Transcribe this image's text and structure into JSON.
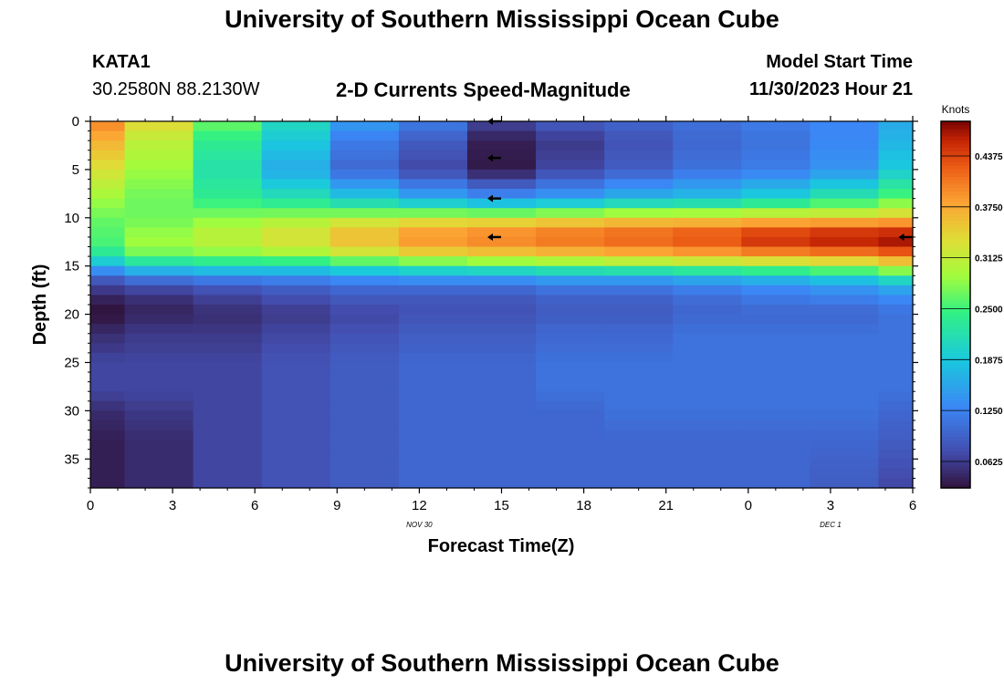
{
  "header": {
    "title": "University of Southern Mississippi Ocean Cube",
    "station": "KATA1",
    "coords": "30.2580N  88.2130W",
    "subtitle": "2-D Currents Speed-Magnitude",
    "model_start_label": "Model Start Time",
    "model_start_value": "11/30/2023 Hour 21"
  },
  "footer": {
    "title": "University of Southern Mississippi Ocean Cube"
  },
  "chart_data": {
    "type": "heatmap",
    "xlabel": "Forecast Time(Z)",
    "ylabel": "Depth (ft)",
    "x_tick_labels": [
      "0",
      "3",
      "6",
      "9",
      "12",
      "15",
      "18",
      "21",
      "0",
      "3",
      "6"
    ],
    "x_tick_hours": [
      0,
      3,
      6,
      9,
      12,
      15,
      18,
      21,
      24,
      27,
      30
    ],
    "x_date_labels": [
      {
        "label": "NOV 30",
        "hour": 12
      },
      {
        "label": "DEC 1",
        "hour": 27
      }
    ],
    "xlim": [
      0,
      30
    ],
    "y_ticks": [
      0,
      5,
      10,
      15,
      20,
      25,
      30,
      35
    ],
    "ylim": [
      0,
      38
    ],
    "y_inverted": true,
    "colorbar": {
      "title": "Knots",
      "tick_labels": [
        "0.0625",
        "0.1250",
        "0.1875",
        "0.2500",
        "0.3125",
        "0.3750",
        "0.4375"
      ],
      "tick_values": [
        0.0625,
        0.125,
        0.1875,
        0.25,
        0.3125,
        0.375,
        0.4375
      ],
      "range": [
        0.03,
        0.48
      ]
    },
    "columns_hours": [
      {
        "start": 0,
        "end": 1.25
      },
      {
        "start": 1.25,
        "end": 3.75
      },
      {
        "start": 3.75,
        "end": 6.25
      },
      {
        "start": 6.25,
        "end": 8.75
      },
      {
        "start": 8.75,
        "end": 11.25
      },
      {
        "start": 11.25,
        "end": 13.75
      },
      {
        "start": 13.75,
        "end": 16.25
      },
      {
        "start": 16.25,
        "end": 18.75
      },
      {
        "start": 18.75,
        "end": 21.25
      },
      {
        "start": 21.25,
        "end": 23.75
      },
      {
        "start": 23.75,
        "end": 26.25
      },
      {
        "start": 26.25,
        "end": 28.75
      },
      {
        "start": 28.75,
        "end": 30
      }
    ],
    "depth_knots": [
      0,
      2,
      5,
      8,
      10,
      11,
      12,
      13,
      14,
      15,
      16,
      17,
      18,
      19,
      20,
      22,
      25,
      28,
      30,
      33,
      38
    ],
    "speed_knots_by_column": [
      [
        0.4,
        0.37,
        0.33,
        0.29,
        0.27,
        0.26,
        0.26,
        0.25,
        0.22,
        0.17,
        0.1,
        0.07,
        0.05,
        0.035,
        0.03,
        0.05,
        0.07,
        0.07,
        0.05,
        0.04,
        0.04
      ],
      [
        0.34,
        0.31,
        0.29,
        0.27,
        0.27,
        0.28,
        0.29,
        0.29,
        0.26,
        0.2,
        0.13,
        0.08,
        0.06,
        0.045,
        0.045,
        0.06,
        0.07,
        0.07,
        0.06,
        0.05,
        0.05
      ],
      [
        0.27,
        0.24,
        0.22,
        0.24,
        0.28,
        0.3,
        0.31,
        0.3,
        0.27,
        0.21,
        0.14,
        0.09,
        0.07,
        0.06,
        0.05,
        0.06,
        0.07,
        0.07,
        0.07,
        0.07,
        0.07
      ],
      [
        0.21,
        0.19,
        0.16,
        0.22,
        0.29,
        0.32,
        0.33,
        0.32,
        0.28,
        0.21,
        0.14,
        0.1,
        0.08,
        0.07,
        0.06,
        0.07,
        0.08,
        0.08,
        0.08,
        0.08,
        0.08
      ],
      [
        0.15,
        0.12,
        0.1,
        0.19,
        0.3,
        0.35,
        0.36,
        0.35,
        0.3,
        0.23,
        0.15,
        0.11,
        0.09,
        0.08,
        0.07,
        0.08,
        0.09,
        0.09,
        0.09,
        0.09,
        0.09
      ],
      [
        0.12,
        0.09,
        0.07,
        0.16,
        0.31,
        0.37,
        0.39,
        0.38,
        0.32,
        0.24,
        0.16,
        0.11,
        0.09,
        0.08,
        0.08,
        0.09,
        0.1,
        0.1,
        0.1,
        0.1,
        0.1
      ],
      [
        0.07,
        0.04,
        0.035,
        0.14,
        0.31,
        0.38,
        0.4,
        0.39,
        0.33,
        0.25,
        0.16,
        0.11,
        0.09,
        0.08,
        0.08,
        0.09,
        0.1,
        0.1,
        0.1,
        0.1,
        0.1
      ],
      [
        0.09,
        0.06,
        0.07,
        0.15,
        0.32,
        0.39,
        0.41,
        0.4,
        0.34,
        0.26,
        0.17,
        0.12,
        0.1,
        0.09,
        0.09,
        0.1,
        0.11,
        0.11,
        0.1,
        0.1,
        0.1
      ],
      [
        0.1,
        0.08,
        0.09,
        0.17,
        0.33,
        0.4,
        0.42,
        0.41,
        0.35,
        0.27,
        0.17,
        0.12,
        0.1,
        0.09,
        0.09,
        0.1,
        0.11,
        0.11,
        0.11,
        0.1,
        0.1
      ],
      [
        0.11,
        0.1,
        0.11,
        0.18,
        0.33,
        0.41,
        0.43,
        0.42,
        0.36,
        0.28,
        0.18,
        0.13,
        0.11,
        0.1,
        0.1,
        0.11,
        0.11,
        0.11,
        0.11,
        0.1,
        0.1
      ],
      [
        0.12,
        0.11,
        0.12,
        0.2,
        0.34,
        0.42,
        0.45,
        0.44,
        0.37,
        0.29,
        0.19,
        0.14,
        0.12,
        0.11,
        0.1,
        0.11,
        0.11,
        0.11,
        0.11,
        0.1,
        0.1
      ],
      [
        0.13,
        0.13,
        0.14,
        0.23,
        0.34,
        0.43,
        0.46,
        0.45,
        0.38,
        0.3,
        0.21,
        0.15,
        0.13,
        0.11,
        0.1,
        0.11,
        0.11,
        0.11,
        0.11,
        0.1,
        0.09
      ],
      [
        0.16,
        0.17,
        0.19,
        0.26,
        0.35,
        0.43,
        0.47,
        0.46,
        0.4,
        0.32,
        0.24,
        0.17,
        0.14,
        0.12,
        0.11,
        0.11,
        0.11,
        0.11,
        0.1,
        0.09,
        0.07
      ]
    ],
    "direction_arrows": [
      {
        "hour": 14.75,
        "depth": 0
      },
      {
        "hour": 14.75,
        "depth": 3.8
      },
      {
        "hour": 14.75,
        "depth": 8
      },
      {
        "hour": 14.75,
        "depth": 12
      },
      {
        "hour": 29.75,
        "depth": 12
      }
    ]
  }
}
